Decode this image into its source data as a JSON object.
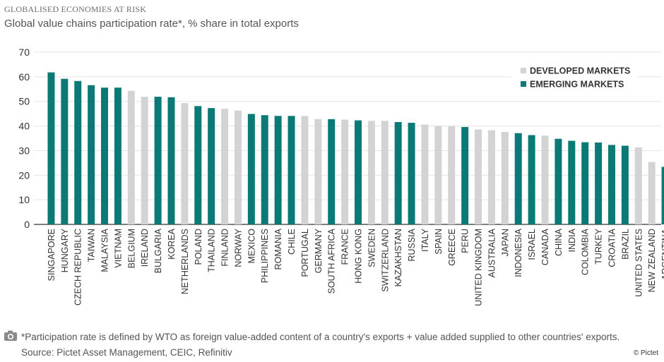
{
  "header": {
    "kicker": "GLOBALISED ECONOMIES AT RISK",
    "subtitle": "Global value chains participation rate*, % share in total exports"
  },
  "footer": {
    "note": "*Participation rate is defined by WTO as foreign value-added content of a country's exports + value added supplied to other countries' exports. Source: Pictet Asset Management, CEIC, Refinitiv",
    "credit": "© Pictet",
    "icon": "camera-icon"
  },
  "colors": {
    "developed": "#d3d3d3",
    "emerging": "#0b7a76",
    "grid": "#e3e3e3",
    "axis": "#333333"
  },
  "chart_data": {
    "type": "bar",
    "title": "Global value chains participation rate*, % share in total exports",
    "xlabel": "",
    "ylabel": "",
    "ylim": [
      0,
      70
    ],
    "yticks": [
      0,
      10,
      20,
      30,
      40,
      50,
      60,
      70
    ],
    "grid": true,
    "legend": {
      "placement": "top-right",
      "entries": [
        {
          "label": "DEVELOPED MARKETS",
          "group": "developed"
        },
        {
          "label": "EMERGING MARKETS",
          "group": "emerging"
        }
      ]
    },
    "categories": [
      "SINGAPORE",
      "HUNGARY",
      "CZECH REPUBLIC",
      "TAIWAN",
      "MALAYSIA",
      "VIETNAM",
      "BELGIUM",
      "IRELAND",
      "BULGARIA",
      "KOREA",
      "NETHERLANDS",
      "POLAND",
      "THAILAND",
      "FINLAND",
      "NORWAY",
      "MEXICO",
      "PHILIPPINES",
      "ROMANIA",
      "CHILE",
      "PORTUGAL",
      "GERMANY",
      "SOUTH AFRICA",
      "FRANCE",
      "HONG KONG",
      "SWEDEN",
      "SWITZERLAND",
      "KAZAKHSTAN",
      "RUSSIA",
      "ITALY",
      "SPAIN",
      "GREECE",
      "PERU",
      "UNITED KINGDOM",
      "AUSTRALIA",
      "JAPAN",
      "INDONESIA",
      "ISRAEL",
      "CANADA",
      "CHINA",
      "INDIA",
      "COLOMBIA",
      "TURKEY",
      "CROATIA",
      "BRAZIL",
      "UNITED STATES",
      "NEW ZEALAND",
      "ARGENTINA"
    ],
    "values": [
      61.8,
      59.2,
      58.3,
      56.6,
      55.6,
      55.6,
      54.3,
      51.9,
      51.9,
      51.7,
      49.3,
      48.1,
      47.3,
      47.0,
      46.3,
      44.9,
      44.4,
      44.1,
      44.1,
      44.1,
      42.8,
      42.8,
      42.6,
      42.3,
      42.1,
      42.1,
      41.6,
      41.3,
      40.6,
      40.0,
      39.9,
      39.6,
      38.6,
      38.3,
      37.6,
      37.1,
      36.3,
      36.1,
      34.8,
      34.0,
      33.4,
      33.3,
      32.3,
      32.0,
      31.3,
      25.4,
      23.4
    ],
    "groups": [
      "emerging",
      "emerging",
      "emerging",
      "emerging",
      "emerging",
      "emerging",
      "developed",
      "developed",
      "emerging",
      "emerging",
      "developed",
      "emerging",
      "emerging",
      "developed",
      "developed",
      "emerging",
      "emerging",
      "emerging",
      "emerging",
      "developed",
      "developed",
      "emerging",
      "developed",
      "emerging",
      "developed",
      "developed",
      "emerging",
      "emerging",
      "developed",
      "developed",
      "developed",
      "emerging",
      "developed",
      "developed",
      "developed",
      "emerging",
      "emerging",
      "developed",
      "emerging",
      "emerging",
      "emerging",
      "emerging",
      "emerging",
      "emerging",
      "developed",
      "developed",
      "emerging"
    ]
  }
}
